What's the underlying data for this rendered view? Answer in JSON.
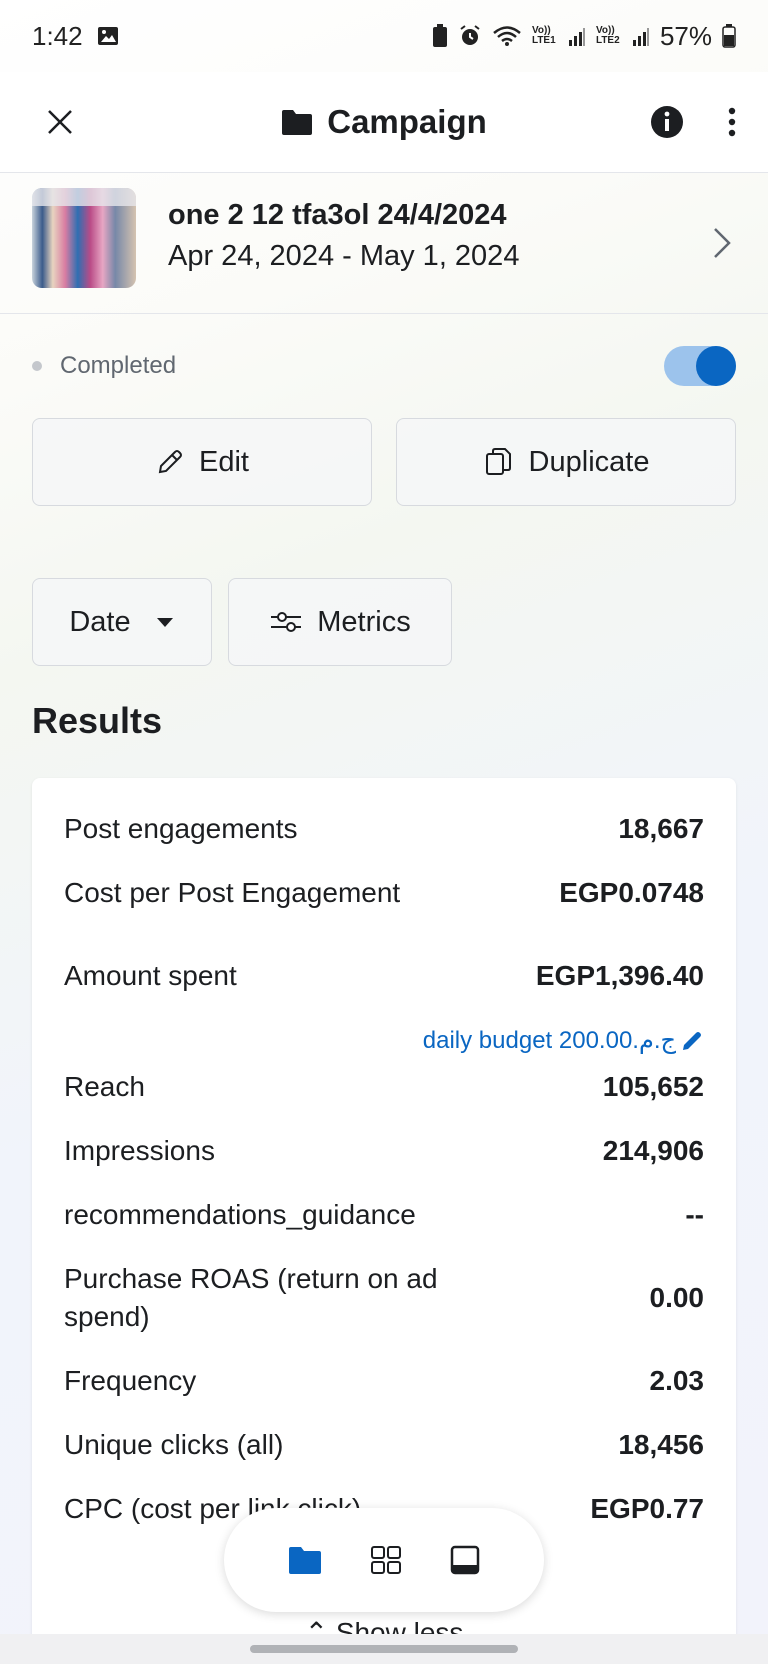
{
  "status_bar": {
    "time": "1:42",
    "signal1_label": "Vo)) LTE1",
    "signal2_label": "Vo)) LTE2",
    "battery": "57%"
  },
  "header": {
    "title": "Campaign"
  },
  "campaign": {
    "name": "one 2 12 tfa3ol 24/4/2024",
    "dates": "Apr 24, 2024 - May 1, 2024"
  },
  "status": {
    "label": "Completed"
  },
  "actions": {
    "edit_label": "Edit",
    "duplicate_label": "Duplicate"
  },
  "filters": {
    "date_label": "Date",
    "metrics_label": "Metrics"
  },
  "results": {
    "title": "Results",
    "budget_link": "daily budget 200.00.ج.م",
    "show_less": "Show less",
    "rows": [
      {
        "label": "Post engagements",
        "value": "18,667"
      },
      {
        "label": "Cost per Post Engagement",
        "value": "EGP0.0748"
      },
      {
        "label": "Amount spent",
        "value": "EGP1,396.40"
      },
      {
        "label": "Reach",
        "value": "105,652"
      },
      {
        "label": "Impressions",
        "value": "214,906"
      },
      {
        "label": "recommendations_guidance",
        "value": "--"
      },
      {
        "label": "Purchase ROAS (return on ad spend)",
        "value": "0.00"
      },
      {
        "label": "Frequency",
        "value": "2.03"
      },
      {
        "label": "Unique clicks (all)",
        "value": "18,456"
      },
      {
        "label": "CPC (cost per link click)",
        "value": "EGP0.77"
      }
    ]
  },
  "colors": {
    "accent": "#0a66c2",
    "toggle_track": "#9cc3ec"
  }
}
